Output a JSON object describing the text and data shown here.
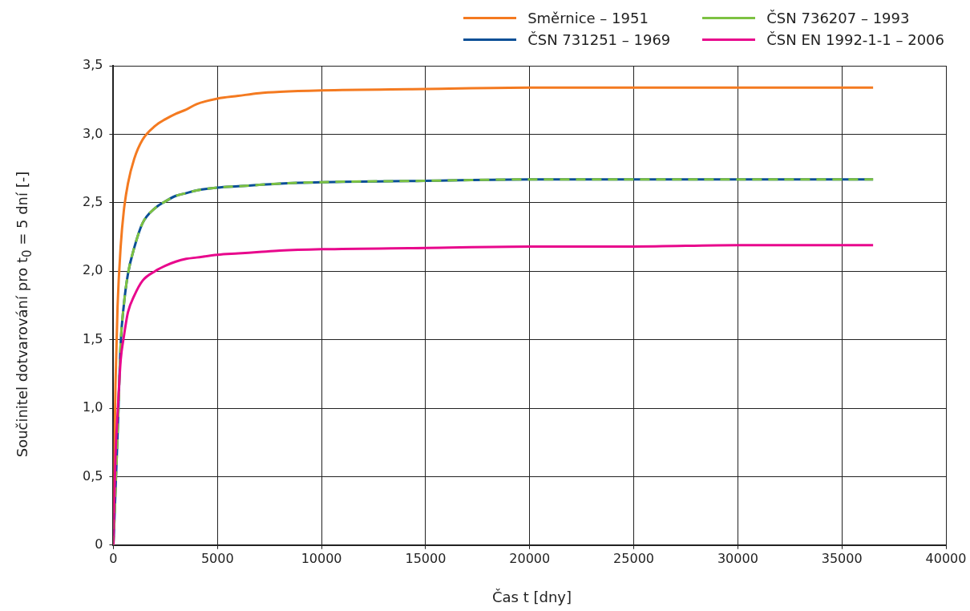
{
  "chart_data": {
    "type": "line",
    "xlabel": "Čas t [dny]",
    "ylabel": "Součinitel dotvarování pro t$_{0}$ = 5 dní [-]",
    "x": [
      0,
      40,
      100,
      200,
      350,
      500,
      700,
      1000,
      1400,
      2000,
      2500,
      3000,
      3500,
      4000,
      5000,
      6000,
      7000,
      8000,
      10000,
      15000,
      20000,
      25000,
      30000,
      36500
    ],
    "series": [
      {
        "name": "Směrnice – 1951",
        "color": "#f47a20",
        "values": [
          0,
          0.59,
          1.17,
          1.74,
          2.18,
          2.44,
          2.64,
          2.82,
          2.96,
          3.06,
          3.11,
          3.15,
          3.18,
          3.22,
          3.26,
          3.28,
          3.3,
          3.31,
          3.32,
          3.33,
          3.34,
          3.34,
          3.34,
          3.34
        ]
      },
      {
        "name": "ČSN 731251 – 1969",
        "color": "#0a4f96",
        "values": [
          0,
          0.15,
          0.4,
          0.8,
          1.47,
          1.75,
          1.98,
          2.17,
          2.35,
          2.46,
          2.51,
          2.55,
          2.57,
          2.59,
          2.61,
          2.62,
          2.63,
          2.64,
          2.65,
          2.66,
          2.67,
          2.67,
          2.67,
          2.67
        ]
      },
      {
        "name": "ČSN 736207 – 1993",
        "color": "#7dc242",
        "line_style": "dashed",
        "values": [
          0,
          0.15,
          0.4,
          0.8,
          1.47,
          1.75,
          1.98,
          2.17,
          2.35,
          2.46,
          2.51,
          2.55,
          2.57,
          2.59,
          2.61,
          2.62,
          2.63,
          2.64,
          2.65,
          2.66,
          2.67,
          2.67,
          2.67,
          2.67
        ]
      },
      {
        "name": "ČSN EN 1992-1-1 – 2006",
        "color": "#e8078c",
        "values": [
          0,
          0.3,
          0.65,
          0.95,
          1.35,
          1.52,
          1.7,
          1.82,
          1.93,
          2.0,
          2.04,
          2.07,
          2.09,
          2.1,
          2.12,
          2.13,
          2.14,
          2.15,
          2.16,
          2.17,
          2.18,
          2.18,
          2.19,
          2.19
        ]
      }
    ],
    "xlim": [
      0,
      40000
    ],
    "xticks": [
      0,
      5000,
      10000,
      15000,
      20000,
      25000,
      30000,
      35000,
      40000
    ],
    "ylim": [
      0,
      3.5
    ],
    "yticks": [
      0,
      {
        "value": 0.5,
        "label": "0,5"
      },
      {
        "value": 1,
        "label": "1,0"
      },
      {
        "value": 1.5,
        "label": "1,5"
      },
      {
        "value": 2,
        "label": "2,0"
      },
      {
        "value": 2.5,
        "label": "2,5"
      },
      {
        "value": 3,
        "label": "3,0"
      },
      {
        "value": 3.5,
        "label": "3,5"
      }
    ],
    "grid": true,
    "legend": "top right",
    "marker": "none",
    "line_style": "solid"
  }
}
